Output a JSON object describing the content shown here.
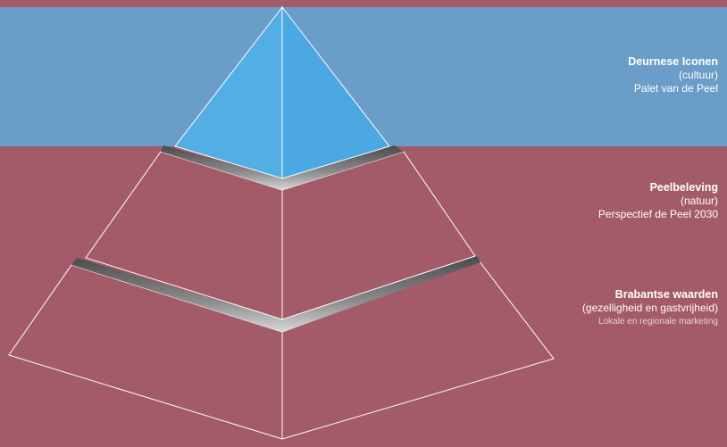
{
  "diagram": {
    "levels": [
      {
        "id": "top",
        "title": "Deurnese Iconen",
        "subtitle": "(cultuur)",
        "note": "Palet van de Peel"
      },
      {
        "id": "middle",
        "title": "Peelbeleving",
        "subtitle": "(natuur)",
        "note": "Perspectief de Peel 2030"
      },
      {
        "id": "bottom",
        "title": "Brabantse waarden",
        "subtitle": "(gezelligheid  en gastvrijheid)",
        "note": "Lokale en regionale marketing"
      }
    ],
    "colors": {
      "background": "#a35a69",
      "top_band": "#6a9dc8",
      "apex_fill": "#52aee5",
      "edge": "#ffffff",
      "shadow": "#7a7a7a"
    }
  }
}
